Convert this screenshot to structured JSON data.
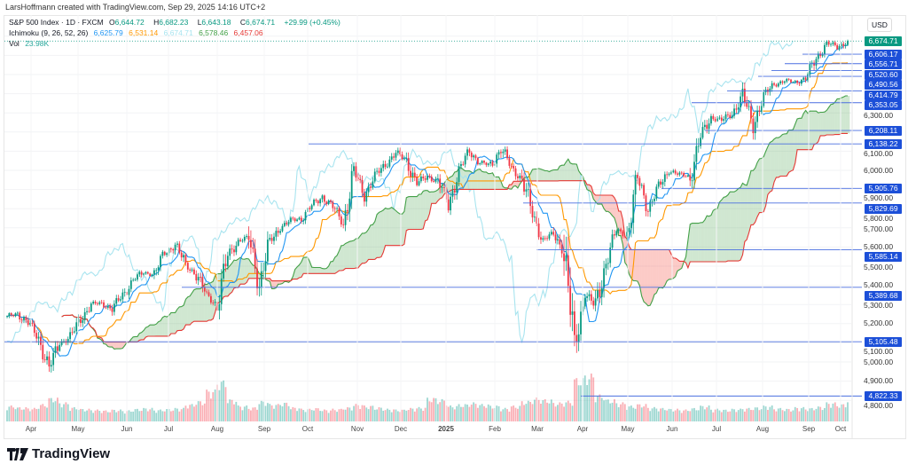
{
  "credit": "LarsHoffmann created with TradingView.com, Sep 29, 2025 14:16 UTC+2",
  "legend": {
    "symbol": "S&P 500 Index · 1D · FXCM",
    "o_label": "O",
    "o": "6,644.72",
    "h_label": "H",
    "h": "6,682.23",
    "l_label": "L",
    "l": "6,643.18",
    "c_label": "C",
    "c": "6,674.71",
    "change": "+29.99 (+0.45%)",
    "ichimoku": "Ichimoku (9, 26, 52, 26)",
    "tenkan": "6,625.79",
    "kijun": "6,531.14",
    "chikou": "6,674.71",
    "span_a": "6,578.46",
    "span_b": "6,457.06",
    "vol_label": "Vol",
    "vol": "23.98K"
  },
  "currency": "USD",
  "brand": "TradingView",
  "colors": {
    "up": "#089981",
    "down": "#f23645",
    "tenkan": "#2196f3",
    "kijun": "#ff9800",
    "chikou": "#a8e4ef",
    "span_a": "#43a047",
    "span_b": "#e53935",
    "level": "#4a6fe0",
    "badge": "#1c4fd8"
  },
  "price_axis": [
    "6,300.00",
    "6,100.00",
    "6,000.00",
    "5,900.00",
    "5,800.00",
    "5,700.00",
    "5,600.00",
    "5,500.00",
    "5,400.00",
    "5,300.00",
    "5,200.00",
    "5,100.00",
    "5,000.00",
    "4,900.00",
    "4,800.00"
  ],
  "x_axis": [
    "Apr",
    "May",
    "Jun",
    "Jul",
    "Aug",
    "Sep",
    "Oct",
    "Nov",
    "Dec",
    "2025",
    "Feb",
    "Mar",
    "Apr",
    "May",
    "Jun",
    "Jul",
    "Aug",
    "Sep",
    "Oct"
  ],
  "chart_data": {
    "type": "candlestick",
    "title": "S&P 500 Index · 1D · FXCM",
    "ylim": [
      4780,
      6720
    ],
    "start": "2024-03-22",
    "interval": "1W (daily candles interpolated)",
    "weekly_close": [
      5234,
      5254,
      5204,
      5123,
      4967,
      5100,
      5128,
      5223,
      5303,
      5305,
      5278,
      5347,
      5431,
      5465,
      5460,
      5567,
      5615,
      5505,
      5459,
      5346,
      5300,
      5554,
      5634,
      5648,
      5408,
      5626,
      5703,
      5738,
      5751,
      5815,
      5864,
      5808,
      5728,
      5995,
      5870,
      5969,
      6032,
      6090,
      6051,
      5930,
      5970,
      5942,
      5827,
      5997,
      6101,
      6040,
      6026,
      6114,
      6013,
      5955,
      5770,
      5639,
      5667,
      5581,
      5074,
      5363,
      5283,
      5525,
      5686,
      5660,
      5958,
      5803,
      5912,
      6000,
      5977,
      5968,
      6173,
      6279,
      6260,
      6297,
      6389,
      6238,
      6389,
      6450,
      6467,
      6460,
      6482,
      6584,
      6664,
      6644,
      6675
    ],
    "weekly_volume_k": [
      20,
      18,
      17,
      22,
      30,
      24,
      18,
      16,
      15,
      14,
      15,
      14,
      16,
      17,
      15,
      16,
      17,
      22,
      26,
      40,
      52,
      28,
      20,
      18,
      26,
      22,
      24,
      18,
      16,
      17,
      15,
      16,
      18,
      22,
      20,
      18,
      16,
      15,
      17,
      18,
      30,
      28,
      20,
      22,
      24,
      22,
      20,
      17,
      20,
      26,
      30,
      28,
      24,
      26,
      55,
      60,
      34,
      28,
      24,
      20,
      22,
      18,
      17,
      16,
      15,
      17,
      20,
      16,
      15,
      16,
      17,
      18,
      20,
      17,
      16,
      18,
      17,
      19,
      24,
      22,
      24
    ],
    "levels": [
      "6,606.17",
      "6,556.71",
      "6,520.60",
      "6,490.56",
      "6,414.79",
      "6,353.05",
      "6,208.11",
      "6,138.22",
      "5,905.76",
      "5,829.69",
      "5,585.14",
      "5,389.68",
      "5,105.48",
      "4,822.33"
    ],
    "last_price": "6,674.71",
    "indicators": [
      "Ichimoku (9, 26, 52, 26)",
      "Volume"
    ]
  }
}
